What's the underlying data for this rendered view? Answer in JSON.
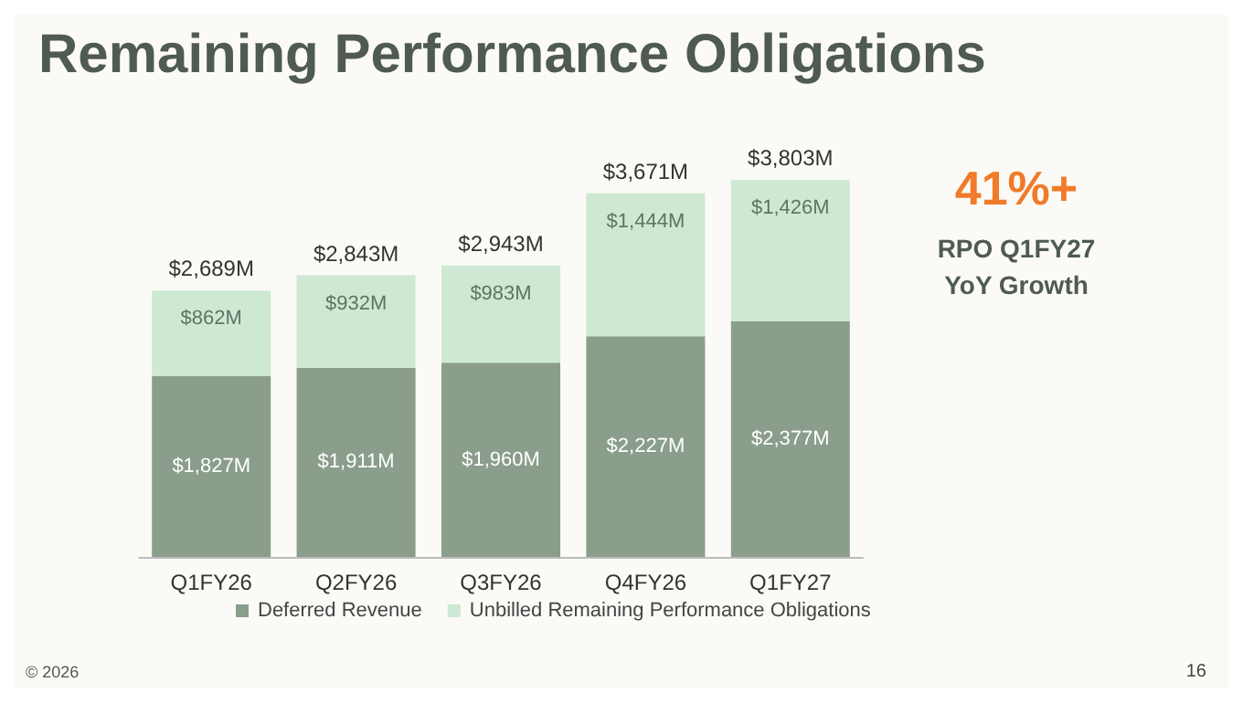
{
  "chart_data": {
    "type": "bar",
    "title": "Remaining Performance Obligations",
    "categories": [
      "Q1FY26",
      "Q2FY26",
      "Q3FY26",
      "Q4FY26",
      "Q1FY27"
    ],
    "stacked": true,
    "legend": "bottom",
    "series": [
      {
        "name": "Deferred Revenue",
        "color": "#8a9e8b",
        "values": [
          1827,
          1911,
          1960,
          2227,
          2377
        ],
        "value_labels": [
          "$1,827M",
          "$1,911M",
          "$1,960M",
          "$2,227M",
          "$2,377M"
        ]
      },
      {
        "name": "Unbilled Remaining Performance Obligations",
        "color": "#cde9d3",
        "values": [
          862,
          932,
          983,
          1444,
          1426
        ],
        "value_labels": [
          "$862M",
          "$932M",
          "$983M",
          "$1,444M",
          "$1,426M"
        ]
      }
    ],
    "totals": [
      "$2,689M",
      "$2,843M",
      "$2,943M",
      "$3,671M",
      "$3,803M"
    ],
    "annotations": [
      "41%+",
      "RPO Q1FY27",
      "YoY Growth",
      "© 2026",
      "16"
    ]
  }
}
